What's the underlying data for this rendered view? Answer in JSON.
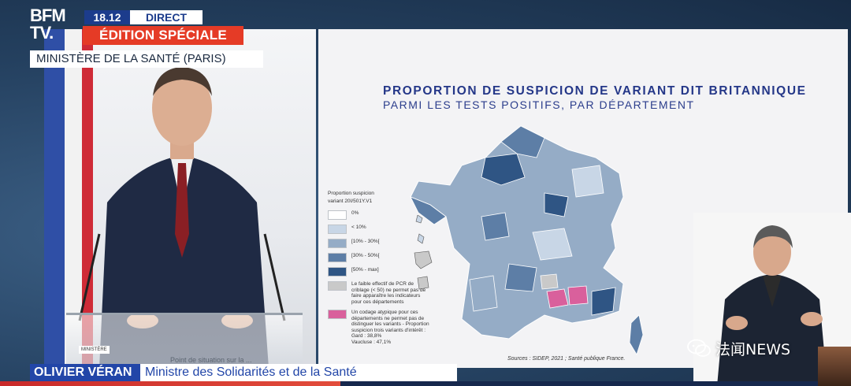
{
  "broadcast": {
    "channel_line1": "BFM",
    "channel_line2": "TV.",
    "time": "18.12",
    "live_label": "DIRECT",
    "edition_label": "ÉDITION SPÉCIALE",
    "location": "MINISTÈRE DE LA SANTÉ (PARIS)"
  },
  "lower_third": {
    "name": "OLIVIER VÉRAN",
    "role": "Ministre des Solidarités et de la Santé"
  },
  "lectern_text": "Point de situation sur la ...",
  "ministry_logo_text": "MINISTÈRE",
  "slide": {
    "title": "PROPORTION DE SUSPICION DE VARIANT DIT BRITANNIQUE",
    "subtitle": "PARMI LES TESTS POSITIFS, PAR DÉPARTEMENT",
    "legend": {
      "title_line1": "Proportion suspicion",
      "title_line2": "variant 20I/501Y.V1",
      "items": [
        {
          "label": "0%",
          "color": "#ffffff"
        },
        {
          "label": "< 10%",
          "color": "#c8d6e6"
        },
        {
          "label": "[10% - 30%[",
          "color": "#95acc6"
        },
        {
          "label": "[30% - 50%[",
          "color": "#5d7ea6"
        },
        {
          "label": "[50% - max]",
          "color": "#2f5584"
        }
      ],
      "grey_note": "Le faible effectif de PCR de criblage (< 50) ne permet pas de faire apparaître les indicateurs pour ces départements",
      "grey_color": "#c9c9c9",
      "pink_note": "Un codage atypique pour ces départements ne permet pas de distinguer les variants - Proportion suspicion trois variants d'intérêt :",
      "pink_detail_1": "Gard : 38,8%",
      "pink_detail_2": "Vaucluse : 47,1%",
      "pink_color": "#d9609c"
    },
    "source": "Sources : SIDEP, 2021 ; Santé publique France."
  },
  "watermark": {
    "text": "法闻NEWS"
  },
  "colors": {
    "bfm_blue": "#1c3c8c",
    "bfm_red": "#e53b26"
  }
}
